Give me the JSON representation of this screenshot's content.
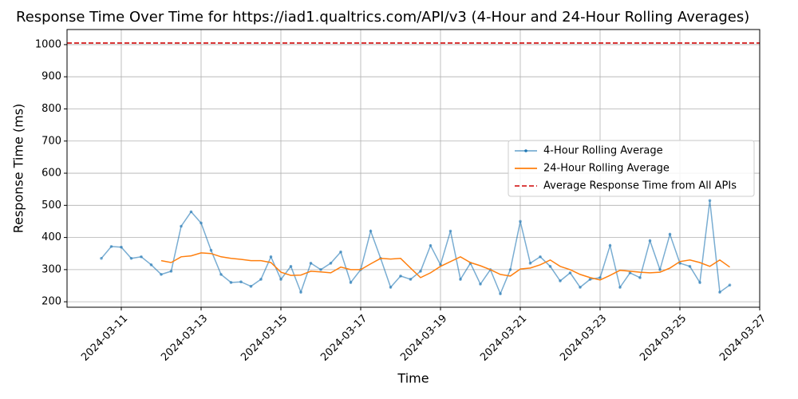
{
  "chart_data": {
    "type": "line",
    "title": "Response Time Over Time for https://iad1.qualtrics.com/API/v3 (4-Hour and 24-Hour Rolling Averages)",
    "x_label": "Time",
    "y_label": "Response Time (ms)",
    "xlim": [
      "2024-03-09T15:22",
      "2024-03-27T00:00"
    ],
    "xticks": [
      "2024-03-11",
      "2024-03-13",
      "2024-03-15",
      "2024-03-17",
      "2024-03-19",
      "2024-03-21",
      "2024-03-23",
      "2024-03-25",
      "2024-03-27"
    ],
    "ylim": [
      183,
      1047
    ],
    "yticks": [
      200,
      300,
      400,
      500,
      600,
      700,
      800,
      900,
      1000
    ],
    "grid": true,
    "legend": "center right",
    "series": [
      {
        "name": "4-Hour Rolling Average",
        "color": "#1f77b4",
        "marker": true,
        "x": [
          "2024-03-10T12:00",
          "2024-03-10T18:00",
          "2024-03-11T00:00",
          "2024-03-11T06:00",
          "2024-03-11T12:00",
          "2024-03-11T18:00",
          "2024-03-12T00:00",
          "2024-03-12T06:00",
          "2024-03-12T12:00",
          "2024-03-12T18:00",
          "2024-03-13T00:00",
          "2024-03-13T06:00",
          "2024-03-13T12:00",
          "2024-03-13T18:00",
          "2024-03-14T00:00",
          "2024-03-14T06:00",
          "2024-03-14T12:00",
          "2024-03-14T18:00",
          "2024-03-15T00:00",
          "2024-03-15T06:00",
          "2024-03-15T12:00",
          "2024-03-15T18:00",
          "2024-03-16T00:00",
          "2024-03-16T06:00",
          "2024-03-16T12:00",
          "2024-03-16T18:00",
          "2024-03-17T00:00",
          "2024-03-17T06:00",
          "2024-03-17T12:00",
          "2024-03-17T18:00",
          "2024-03-18T00:00",
          "2024-03-18T06:00",
          "2024-03-18T12:00",
          "2024-03-18T18:00",
          "2024-03-19T00:00",
          "2024-03-19T06:00",
          "2024-03-19T12:00",
          "2024-03-19T18:00",
          "2024-03-20T00:00",
          "2024-03-20T06:00",
          "2024-03-20T12:00",
          "2024-03-20T18:00",
          "2024-03-21T00:00",
          "2024-03-21T06:00",
          "2024-03-21T12:00",
          "2024-03-21T18:00",
          "2024-03-22T00:00",
          "2024-03-22T06:00",
          "2024-03-22T12:00",
          "2024-03-22T18:00",
          "2024-03-23T00:00",
          "2024-03-23T06:00",
          "2024-03-23T12:00",
          "2024-03-23T18:00",
          "2024-03-24T00:00",
          "2024-03-24T06:00",
          "2024-03-24T12:00",
          "2024-03-24T18:00",
          "2024-03-25T00:00",
          "2024-03-25T06:00",
          "2024-03-25T12:00",
          "2024-03-25T18:00",
          "2024-03-26T00:00",
          "2024-03-26T06:00"
        ],
        "values": [
          335,
          372,
          370,
          335,
          340,
          315,
          285,
          295,
          435,
          480,
          445,
          360,
          285,
          260,
          262,
          248,
          270,
          340,
          270,
          310,
          230,
          320,
          300,
          320,
          355,
          260,
          300,
          420,
          335,
          245,
          280,
          270,
          295,
          375,
          315,
          420,
          270,
          320,
          255,
          300,
          225,
          300,
          450,
          320,
          340,
          310,
          265,
          290,
          245,
          270,
          275,
          375,
          245,
          290,
          275,
          390,
          300,
          410,
          320,
          310,
          260,
          515,
          230,
          252
        ]
      },
      {
        "name": "24-Hour Rolling Average",
        "color": "#ff7f0e",
        "marker": false,
        "x": [
          "2024-03-12T00:00",
          "2024-03-12T06:00",
          "2024-03-12T12:00",
          "2024-03-12T18:00",
          "2024-03-13T00:00",
          "2024-03-13T06:00",
          "2024-03-13T12:00",
          "2024-03-13T18:00",
          "2024-03-14T00:00",
          "2024-03-14T06:00",
          "2024-03-14T12:00",
          "2024-03-14T18:00",
          "2024-03-15T00:00",
          "2024-03-15T06:00",
          "2024-03-15T12:00",
          "2024-03-15T18:00",
          "2024-03-16T00:00",
          "2024-03-16T06:00",
          "2024-03-16T12:00",
          "2024-03-16T18:00",
          "2024-03-17T00:00",
          "2024-03-17T06:00",
          "2024-03-17T12:00",
          "2024-03-17T18:00",
          "2024-03-18T00:00",
          "2024-03-18T06:00",
          "2024-03-18T12:00",
          "2024-03-18T18:00",
          "2024-03-19T00:00",
          "2024-03-19T06:00",
          "2024-03-19T12:00",
          "2024-03-19T18:00",
          "2024-03-20T00:00",
          "2024-03-20T06:00",
          "2024-03-20T12:00",
          "2024-03-20T18:00",
          "2024-03-21T00:00",
          "2024-03-21T06:00",
          "2024-03-21T12:00",
          "2024-03-21T18:00",
          "2024-03-22T00:00",
          "2024-03-22T06:00",
          "2024-03-22T12:00",
          "2024-03-22T18:00",
          "2024-03-23T00:00",
          "2024-03-23T06:00",
          "2024-03-23T12:00",
          "2024-03-23T18:00",
          "2024-03-24T00:00",
          "2024-03-24T06:00",
          "2024-03-24T12:00",
          "2024-03-24T18:00",
          "2024-03-25T00:00",
          "2024-03-25T06:00",
          "2024-03-25T12:00",
          "2024-03-25T18:00",
          "2024-03-26T00:00",
          "2024-03-26T06:00"
        ],
        "values": [
          328,
          322,
          340,
          343,
          352,
          350,
          340,
          335,
          332,
          328,
          328,
          322,
          292,
          282,
          283,
          295,
          293,
          290,
          308,
          300,
          300,
          318,
          335,
          333,
          335,
          305,
          275,
          290,
          310,
          325,
          340,
          322,
          312,
          300,
          285,
          280,
          302,
          305,
          315,
          330,
          310,
          300,
          285,
          275,
          268,
          282,
          298,
          295,
          292,
          290,
          292,
          305,
          325,
          330,
          322,
          310,
          330,
          308
        ]
      }
    ],
    "reference_line": {
      "name": "Average Response Time from All APIs",
      "value": 1005,
      "color": "#d62728"
    }
  }
}
